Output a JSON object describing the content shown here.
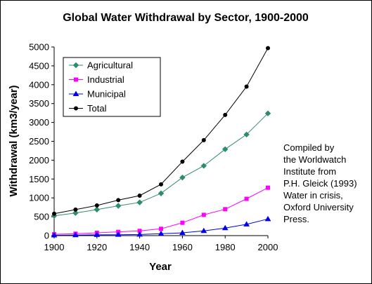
{
  "chart_data": {
    "type": "line",
    "title": "Global Water Withdrawal by Sector, 1900-2000",
    "xlabel": "Year",
    "ylabel": "Withdrawal (km3/year)",
    "x": [
      1900,
      1910,
      1920,
      1930,
      1940,
      1950,
      1960,
      1970,
      1980,
      1990,
      2000
    ],
    "xlim": [
      1900,
      2000
    ],
    "xticks": [
      1900,
      1920,
      1940,
      1960,
      1980,
      2000
    ],
    "ylim": [
      0,
      5000
    ],
    "yticks": [
      0,
      500,
      1000,
      1500,
      2000,
      2500,
      3000,
      3500,
      4000,
      4500,
      5000
    ],
    "grid": false,
    "legend_position": "top-left",
    "series": [
      {
        "name": "Agricultural",
        "color": "#2e8b6e",
        "marker": "diamond",
        "values": [
          525,
          600,
          690,
          790,
          880,
          1120,
          1540,
          1850,
          2290,
          2680,
          3240
        ]
      },
      {
        "name": "Industrial",
        "color": "#ff00ff",
        "marker": "square",
        "values": [
          35,
          50,
          75,
          100,
          125,
          180,
          340,
          550,
          700,
          975,
          1270
        ]
      },
      {
        "name": "Municipal",
        "color": "#0000ee",
        "marker": "triangle",
        "values": [
          10,
          15,
          20,
          25,
          30,
          50,
          75,
          125,
          200,
          300,
          440
        ]
      },
      {
        "name": "Total",
        "color": "#000000",
        "marker": "circle",
        "values": [
          580,
          690,
          800,
          940,
          1060,
          1360,
          1960,
          2530,
          3200,
          3950,
          4970
        ]
      }
    ]
  },
  "annotation": {
    "lines": [
      "Compiled by",
      "the Worldwatch",
      "Institute from",
      "P.H. Gleick (1993)",
      "Water in crisis,",
      "Oxford University",
      "Press."
    ]
  }
}
